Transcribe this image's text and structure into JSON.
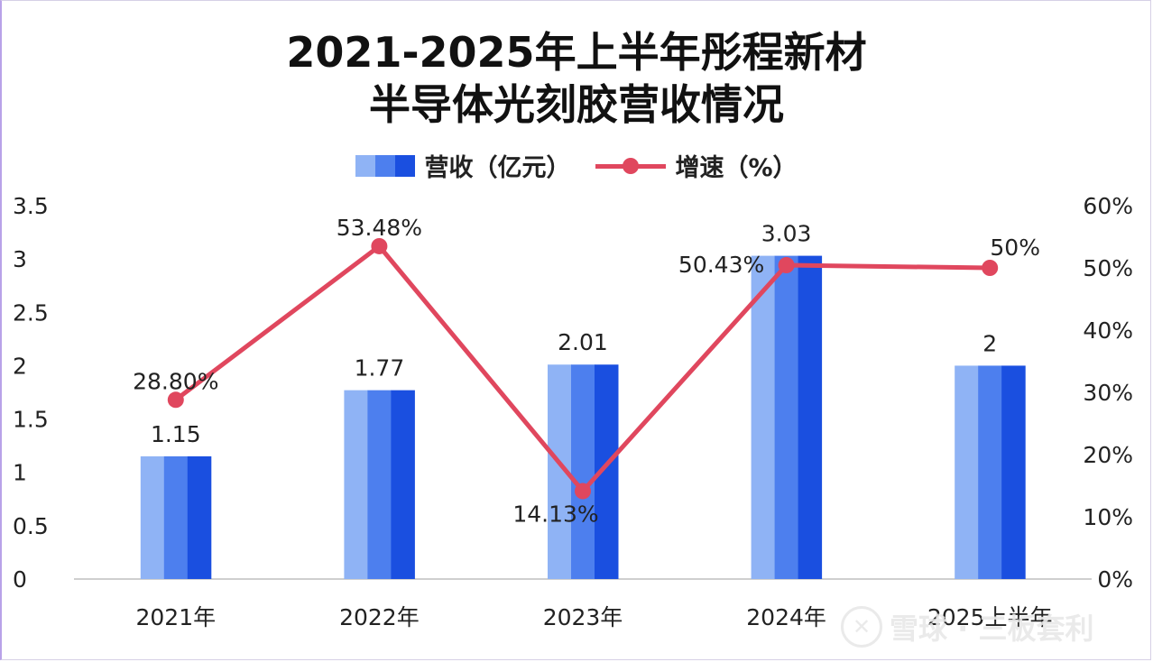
{
  "chart_data": {
    "type": "bar",
    "title_line1": "2021-2025年上半年彤程新材",
    "title_line2": "半导体光刻胶营收情况",
    "categories": [
      "2021年",
      "2022年",
      "2023年",
      "2024年",
      "2025上半年"
    ],
    "series": [
      {
        "name": "营收（亿元）",
        "type": "bar",
        "axis": "left",
        "values": [
          1.15,
          1.77,
          2.01,
          3.03,
          2
        ],
        "labels": [
          "1.15",
          "1.77",
          "2.01",
          "3.03",
          "2"
        ]
      },
      {
        "name": "增速（%）",
        "type": "line",
        "axis": "right",
        "values": [
          28.8,
          53.48,
          14.13,
          50.43,
          50
        ],
        "labels": [
          "28.80%",
          "53.48%",
          "14.13%",
          "50.43%",
          "50%"
        ]
      }
    ],
    "y_left": {
      "min": 0,
      "max": 3.5,
      "ticks": [
        "0",
        "0.5",
        "1",
        "1.5",
        "2",
        "2.5",
        "3",
        "3.5"
      ]
    },
    "y_right": {
      "min": 0,
      "max": 60,
      "ticks": [
        "0%",
        "10%",
        "20%",
        "30%",
        "40%",
        "50%",
        "60%"
      ]
    },
    "legend_placement": "top-center",
    "grid": false
  },
  "colors": {
    "bar_light": "#8fb3f5",
    "bar_mid": "#4d7fee",
    "bar_dark": "#1a4fe0",
    "line": "#e0475e",
    "axis": "#cfcfcf",
    "text": "#222222"
  },
  "watermark": {
    "icon": "snowball-logo-icon",
    "text": "雪球 · 三板套利"
  }
}
